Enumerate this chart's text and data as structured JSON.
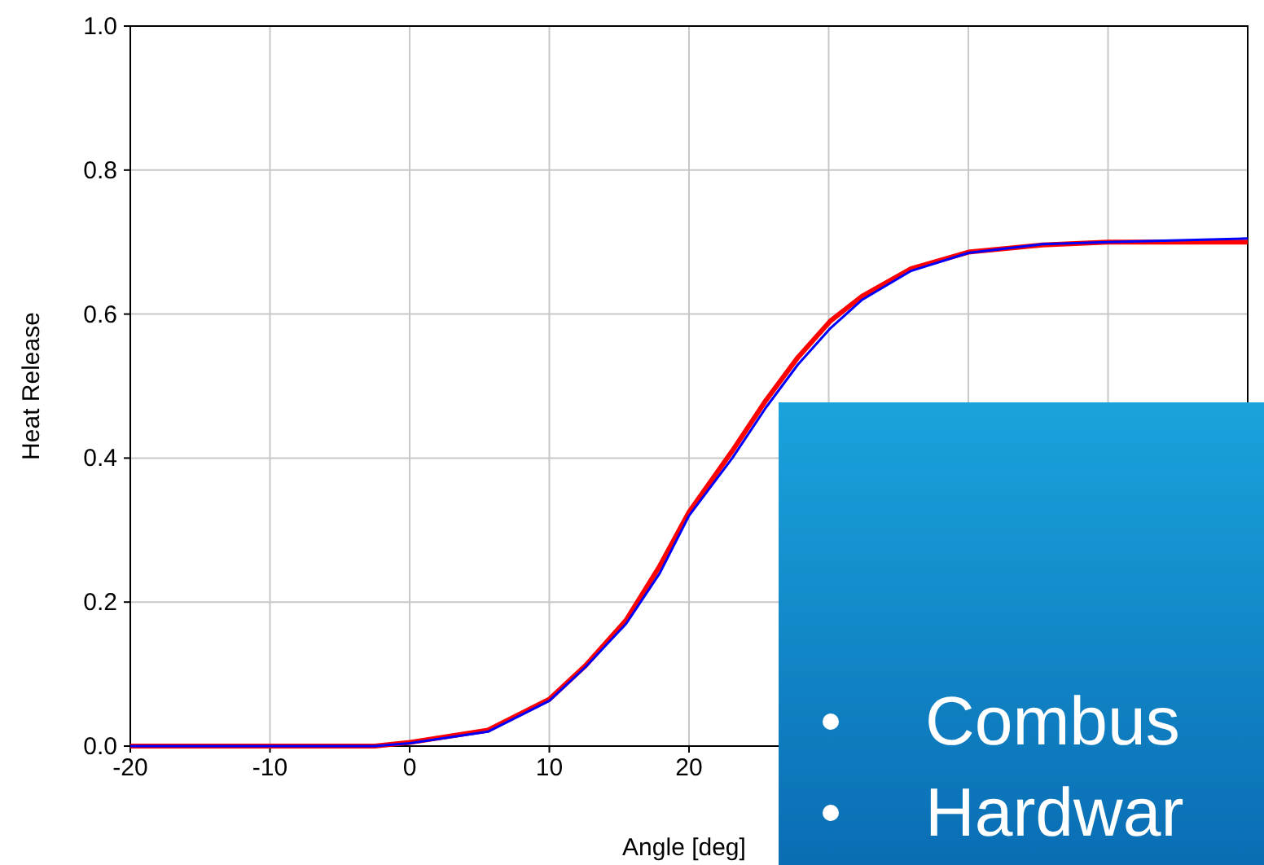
{
  "chart_data": {
    "type": "line",
    "xlabel": "Angle [deg]",
    "ylabel": "Heat Release",
    "xlim": [
      -20,
      60
    ],
    "xticks": [
      -20,
      -10,
      0,
      10,
      20,
      {
        "value": 30,
        "label": null
      },
      {
        "value": 40,
        "label": null
      },
      {
        "value": 50,
        "label": null
      },
      {
        "value": 60,
        "label": null
      }
    ],
    "ylim": [
      0,
      1
    ],
    "yticks": [
      {
        "value": 0,
        "label": "0.0"
      },
      {
        "value": 0.2,
        "label": "0.2"
      },
      {
        "value": 0.4,
        "label": "0.4"
      },
      {
        "value": 0.6,
        "label": "0.6"
      },
      {
        "value": 0.8,
        "label": "0.8"
      },
      {
        "value": 1,
        "label": "1.0"
      }
    ],
    "grid": true,
    "marker": "none",
    "line_style": "solid",
    "annotations": [
      "Combus",
      "Hardwar"
    ],
    "series": [
      {
        "color": "#ff0000",
        "x": [
          -20,
          -2.5,
          0,
          5.6,
          10,
          12.6,
          15.5,
          17.9,
          20,
          23.1,
          25.5,
          27.8,
          30.1,
          32.4,
          35.9,
          40,
          45.3,
          50,
          60
        ],
        "values": [
          0,
          0,
          0.005,
          0.022,
          0.065,
          0.112,
          0.175,
          0.25,
          0.325,
          0.41,
          0.48,
          0.54,
          0.59,
          0.625,
          0.663,
          0.686,
          0.696,
          0.7,
          0.7
        ]
      },
      {
        "color": "#0000ff",
        "x": [
          -20,
          -2.5,
          0,
          5.6,
          10,
          12.6,
          15.5,
          17.9,
          20,
          23.1,
          25.5,
          27.8,
          30.1,
          32.4,
          35.9,
          40,
          45.3,
          50,
          60
        ],
        "values": [
          0,
          0,
          0.004,
          0.02,
          0.063,
          0.11,
          0.17,
          0.24,
          0.32,
          0.4,
          0.47,
          0.53,
          0.58,
          0.62,
          0.66,
          0.685,
          0.697,
          0.7,
          0.705
        ]
      }
    ]
  }
}
